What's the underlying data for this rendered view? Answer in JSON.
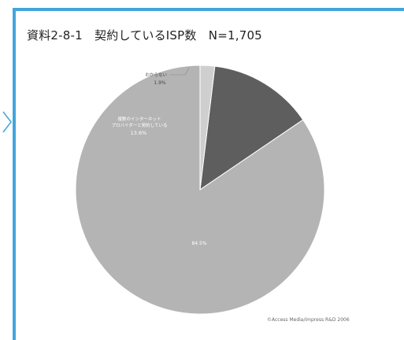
{
  "title": "資料2-8-1　契約しているISP数　N=1,705",
  "copyright": "©Access Media/impress R&D 2006",
  "colors": {
    "frame": "#42a5dc",
    "slice_main": "#b4b4b4",
    "slice_multi": "#5e5e5e",
    "slice_unknown": "#cfcfcf",
    "label_light": "#ffffff",
    "label_dark": "#444444"
  },
  "chart_data": {
    "type": "pie",
    "title": "資料2-8-1　契約しているISP数　N=1,705",
    "start_angle_deg": 0,
    "direction": "counterclockwise",
    "slices": [
      {
        "label": "",
        "value": 84.5,
        "value_label": "84.5%",
        "color": "#b4b4b4"
      },
      {
        "label": "複数のインターネットプロバイダーと契約している",
        "label_lines": [
          "複数のインターネット",
          "プロバイダーと契約している"
        ],
        "value": 13.6,
        "value_label": "13.6%",
        "color": "#5e5e5e"
      },
      {
        "label": "わからない",
        "value": 1.9,
        "value_label": "1.9%",
        "color": "#cfcfcf"
      }
    ]
  }
}
